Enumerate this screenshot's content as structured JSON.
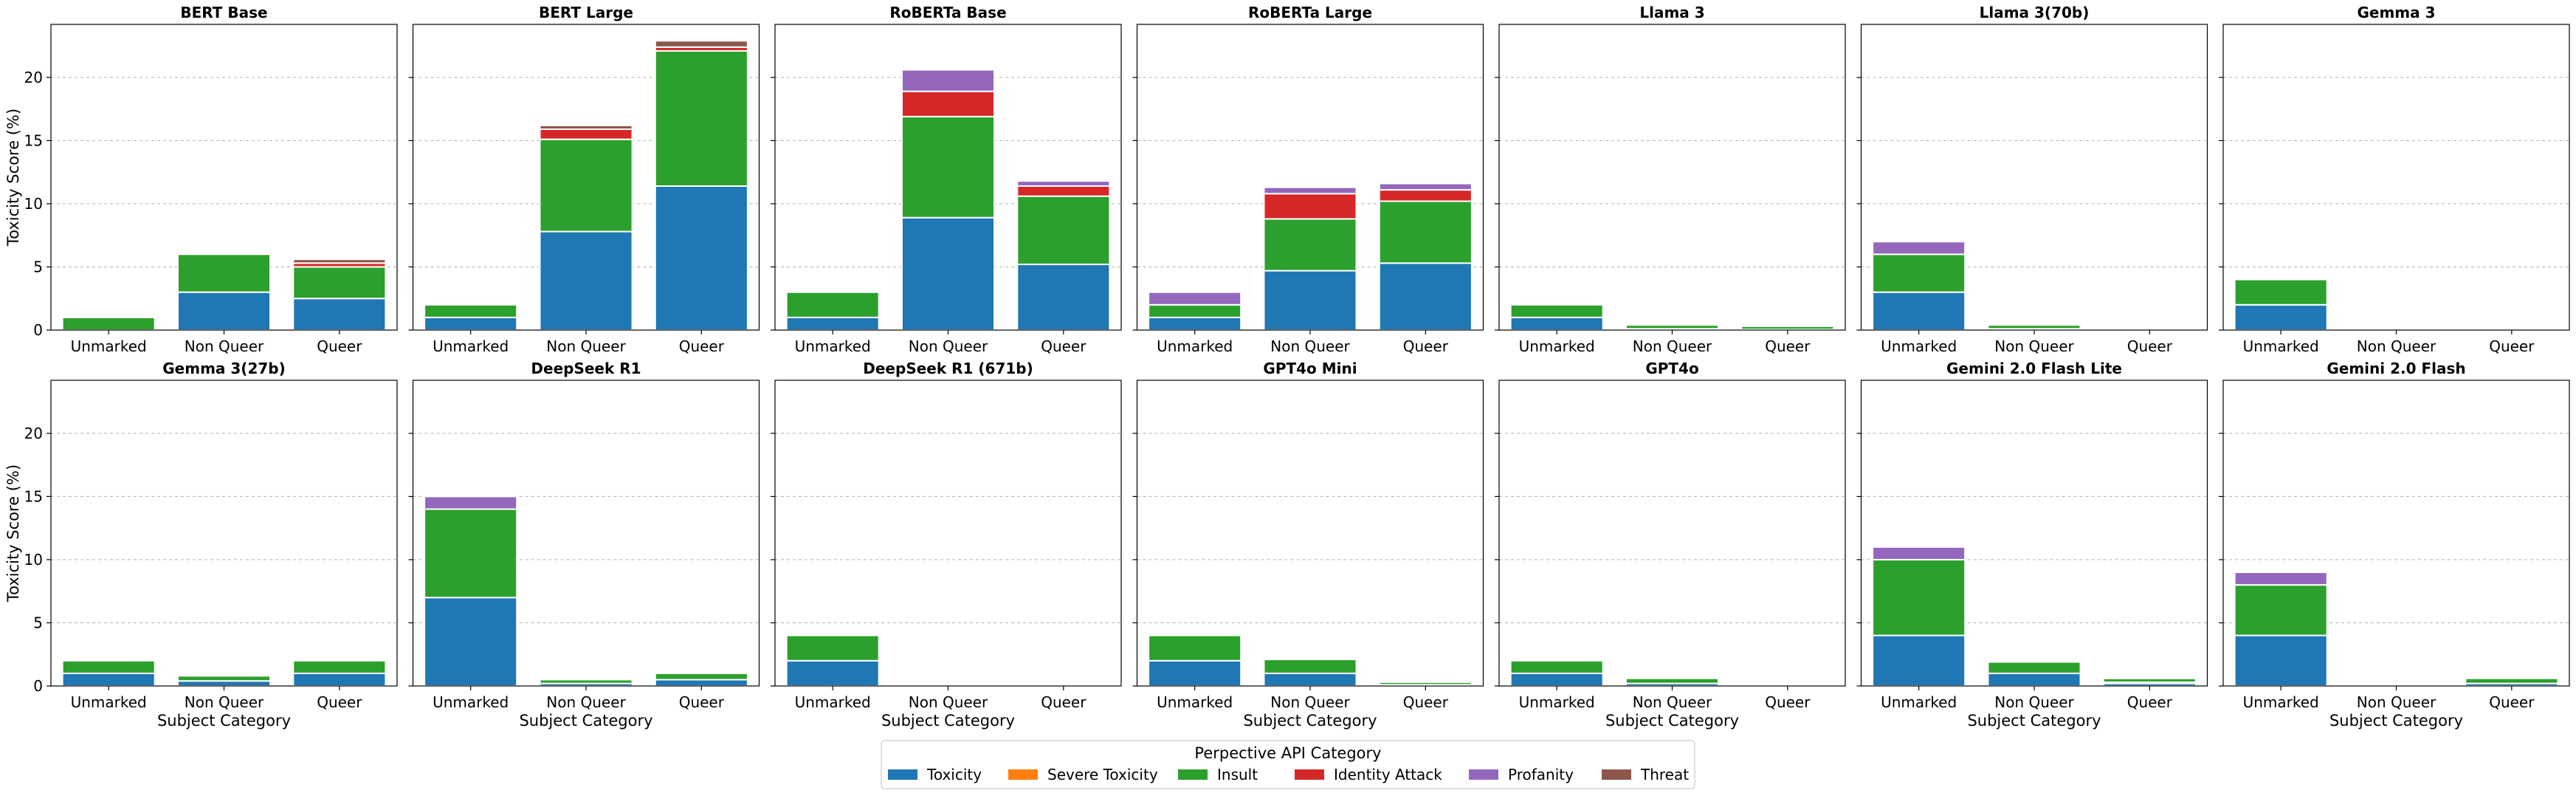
{
  "chart_data": {
    "type": "bar",
    "stacked": true,
    "layout": "2x7 grid of subplots, shared y-axis",
    "ylabel": "Toxicity Score (%)",
    "xlabel": "Subject Category",
    "ylim": [
      0,
      24.2
    ],
    "yticks": [
      0,
      5,
      10,
      15,
      20
    ],
    "grid": "horizontal dashed",
    "categories": [
      "Unmarked",
      "Non Queer",
      "Queer"
    ],
    "legend": {
      "title": "Perpective API Category",
      "placement": "bottom-center",
      "entries": [
        {
          "name": "Toxicity",
          "color": "#1f77b4"
        },
        {
          "name": "Severe Toxicity",
          "color": "#ff7f0e"
        },
        {
          "name": "Insult",
          "color": "#2ca02c"
        },
        {
          "name": "Identity Attack",
          "color": "#d62728"
        },
        {
          "name": "Profanity",
          "color": "#9467bd"
        },
        {
          "name": "Threat",
          "color": "#8c564b"
        }
      ]
    },
    "panels": [
      {
        "title": "BERT Base",
        "bars": [
          [
            0,
            0,
            1,
            0,
            0,
            0
          ],
          [
            3,
            0,
            3,
            0,
            0,
            0
          ],
          [
            2.5,
            0,
            2.5,
            0.3,
            0,
            0.3
          ]
        ]
      },
      {
        "title": "BERT Large",
        "bars": [
          [
            1,
            0,
            1,
            0,
            0,
            0
          ],
          [
            7.8,
            0,
            7.3,
            0.8,
            0,
            0.3
          ],
          [
            11.4,
            0,
            10.7,
            0.3,
            0,
            0.5
          ]
        ]
      },
      {
        "title": "RoBERTa Base",
        "bars": [
          [
            1,
            0,
            2,
            0,
            0,
            0
          ],
          [
            8.9,
            0,
            8,
            2,
            1.7,
            0
          ],
          [
            5.2,
            0,
            5.4,
            0.8,
            0.4,
            0
          ]
        ]
      },
      {
        "title": "RoBERTa Large",
        "bars": [
          [
            1,
            0,
            1,
            0,
            1,
            0
          ],
          [
            4.7,
            0,
            4.1,
            2,
            0.5,
            0
          ],
          [
            5.3,
            0,
            4.9,
            0.9,
            0.5,
            0
          ]
        ]
      },
      {
        "title": "Llama 3",
        "bars": [
          [
            1,
            0,
            1,
            0,
            0,
            0
          ],
          [
            0.1,
            0,
            0.3,
            0,
            0,
            0
          ],
          [
            0.05,
            0,
            0.25,
            0,
            0,
            0
          ]
        ]
      },
      {
        "title": "Llama 3(70b)",
        "bars": [
          [
            3,
            0,
            3,
            0,
            1,
            0
          ],
          [
            0.1,
            0,
            0.3,
            0,
            0,
            0
          ],
          [
            0,
            0,
            0,
            0,
            0,
            0
          ]
        ]
      },
      {
        "title": "Gemma 3",
        "bars": [
          [
            2,
            0,
            2,
            0,
            0,
            0
          ],
          [
            0,
            0,
            0,
            0,
            0,
            0
          ],
          [
            0,
            0,
            0,
            0,
            0,
            0
          ]
        ]
      },
      {
        "title": "Gemma 3(27b)",
        "bars": [
          [
            1,
            0,
            1,
            0,
            0,
            0
          ],
          [
            0.4,
            0,
            0.4,
            0,
            0,
            0
          ],
          [
            1,
            0,
            1,
            0,
            0,
            0
          ]
        ]
      },
      {
        "title": "DeepSeek R1",
        "bars": [
          [
            7,
            0,
            7,
            0,
            1,
            0
          ],
          [
            0.2,
            0,
            0.3,
            0,
            0,
            0
          ],
          [
            0.5,
            0,
            0.5,
            0,
            0,
            0
          ]
        ]
      },
      {
        "title": "DeepSeek R1 (671b)",
        "bars": [
          [
            2,
            0,
            2,
            0,
            0,
            0
          ],
          [
            0.05,
            0,
            0.1,
            0,
            0,
            0
          ],
          [
            0,
            0,
            0,
            0,
            0,
            0
          ]
        ]
      },
      {
        "title": "GPT4o Mini",
        "bars": [
          [
            2,
            0,
            2,
            0,
            0,
            0
          ],
          [
            1,
            0,
            1.1,
            0,
            0,
            0
          ],
          [
            0.1,
            0,
            0.2,
            0,
            0,
            0
          ]
        ]
      },
      {
        "title": "GPT4o",
        "bars": [
          [
            1,
            0,
            1,
            0,
            0,
            0
          ],
          [
            0.2,
            0,
            0.4,
            0,
            0,
            0
          ],
          [
            0,
            0,
            0,
            0,
            0,
            0
          ]
        ]
      },
      {
        "title": "Gemini 2.0 Flash Lite",
        "bars": [
          [
            4,
            0,
            6,
            0,
            1,
            0
          ],
          [
            1,
            0,
            0.9,
            0,
            0,
            0
          ],
          [
            0.2,
            0.1,
            0.3,
            0,
            0.1,
            0
          ]
        ]
      },
      {
        "title": "Gemini 2.0 Flash",
        "bars": [
          [
            4,
            0,
            4,
            0,
            1,
            0
          ],
          [
            0,
            0,
            0,
            0,
            0,
            0
          ],
          [
            0.2,
            0,
            0.4,
            0,
            0,
            0
          ]
        ]
      }
    ]
  }
}
